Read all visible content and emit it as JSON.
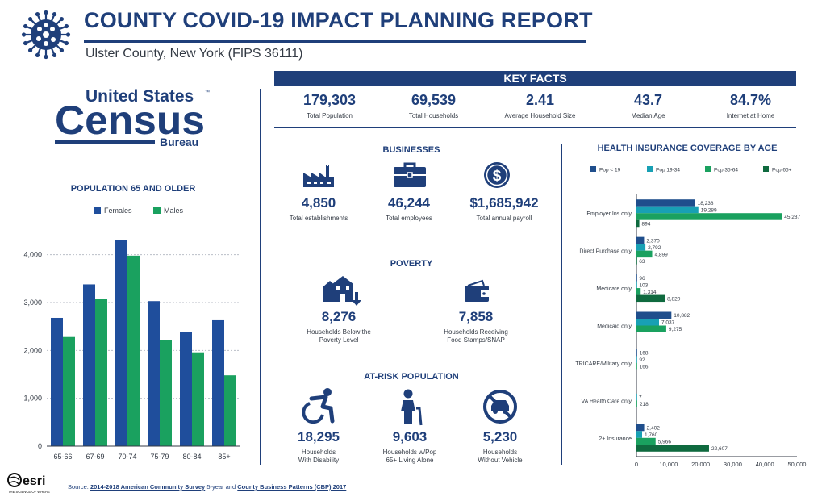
{
  "header": {
    "title": "COUNTY COVID-19 IMPACT PLANNING REPORT",
    "subtitle": "Ulster County,  New York  (FIPS  36111)"
  },
  "census_logo": {
    "line1": "United States",
    "line2": "Census",
    "line3": "Bureau",
    "tm": "™"
  },
  "key_facts": {
    "heading": "KEY FACTS",
    "items": [
      {
        "value": "179,303",
        "label": "Total Population"
      },
      {
        "value": "69,539",
        "label": "Total Households"
      },
      {
        "value": "2.41",
        "label": "Average Household Size"
      },
      {
        "value": "43.7",
        "label": "Median Age"
      },
      {
        "value": "84.7%",
        "label": "Internet at Home"
      }
    ]
  },
  "businesses": {
    "heading": "BUSINESSES",
    "items": [
      {
        "value": "4,850",
        "label": "Total establishments",
        "icon": "factory-icon"
      },
      {
        "value": "46,244",
        "label": "Total employees",
        "icon": "briefcase-icon"
      },
      {
        "value": "$1,685,942",
        "label": "Total annual payroll",
        "icon": "dollar-coin-icon"
      }
    ]
  },
  "poverty": {
    "heading": "POVERTY",
    "items": [
      {
        "value": "8,276",
        "label1": "Households Below the",
        "label2": "Poverty Level",
        "icon": "house-down-arrow-icon"
      },
      {
        "value": "7,858",
        "label1": "Households Receiving",
        "label2": "Food Stamps/SNAP",
        "icon": "wallet-icon"
      }
    ]
  },
  "at_risk": {
    "heading": "AT-RISK POPULATION",
    "items": [
      {
        "value": "18,295",
        "label1": "Households",
        "label2": "With Disability",
        "icon": "wheelchair-icon"
      },
      {
        "value": "9,603",
        "label1": "Households w/Pop",
        "label2": "65+ Living Alone",
        "icon": "elderly-person-icon"
      },
      {
        "value": "5,230",
        "label1": "Households",
        "label2": "Without Vehicle",
        "icon": "no-car-icon"
      }
    ]
  },
  "footer": {
    "esri": "esri",
    "esri_tag": "THE SCIENCE OF WHERE",
    "source_prefix": "Source: ",
    "source_link1": "2014-2018 American Community Survey",
    "source_mid": " 5-year and ",
    "source_link2": "County Business Patterns (CBP) 2017"
  },
  "chart_data": [
    {
      "type": "bar",
      "title": "POPULATION 65 AND OLDER",
      "categories": [
        "65-66",
        "67-69",
        "70-74",
        "75-79",
        "80-84",
        "85+"
      ],
      "series": [
        {
          "name": "Females",
          "values": [
            2680,
            3380,
            4310,
            3030,
            2380,
            2630
          ]
        },
        {
          "name": "Males",
          "values": [
            2280,
            3080,
            3980,
            2210,
            1960,
            1480
          ]
        }
      ],
      "ylim": [
        0,
        4500
      ],
      "yticks": [
        0,
        1000,
        2000,
        3000,
        4000
      ],
      "ytick_labels": [
        "0",
        "1,000",
        "2,000",
        "3,000",
        "4,000"
      ],
      "grid": true,
      "legend": "top",
      "colors": [
        "#1f4e9c",
        "#1aa15f"
      ]
    },
    {
      "type": "bar",
      "orientation": "horizontal",
      "title": "HEALTH INSURANCE COVERAGE BY AGE",
      "categories": [
        "Employer Ins only",
        "Direct Purchase only",
        "Medicare only",
        "Medicaid only",
        "TRICARE/Military only",
        "VA Health Care only",
        "2+ Insurance"
      ],
      "series": [
        {
          "name": "Pop < 19",
          "values": [
            18238,
            2370,
            96,
            10882,
            168,
            0,
            2402
          ],
          "labels": [
            "18,238",
            "2,370",
            "96",
            "10,882",
            "168",
            "",
            "2,402"
          ]
        },
        {
          "name": "Pop 19-34",
          "values": [
            19289,
            2792,
            103,
            7037,
            92,
            7,
            1760
          ],
          "labels": [
            "19,289",
            "2,792",
            "103",
            "7,037",
            "92",
            "7",
            "1,760"
          ]
        },
        {
          "name": "Pop 35-64",
          "values": [
            45287,
            4899,
            1314,
            9275,
            166,
            218,
            5966
          ],
          "labels": [
            "45,287",
            "4,899",
            "1,314",
            "9,275",
            "166",
            "218",
            "5,966"
          ]
        },
        {
          "name": "Pop 65+",
          "values": [
            894,
            63,
            8820,
            0,
            0,
            0,
            22607
          ],
          "labels": [
            "894",
            "63",
            "8,820",
            "",
            "",
            "",
            "22,607"
          ]
        }
      ],
      "xlim": [
        0,
        50000
      ],
      "xticks": [
        0,
        10000,
        20000,
        30000,
        40000,
        50000
      ],
      "xtick_labels": [
        "0",
        "10,000",
        "20,000",
        "30,000",
        "40,000",
        "50,000"
      ],
      "legend": "top",
      "colors": [
        "#1f4e8c",
        "#18a0b4",
        "#1aa15f",
        "#0f6a3f"
      ]
    }
  ]
}
